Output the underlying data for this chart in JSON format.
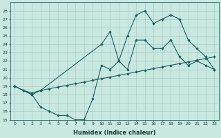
{
  "xlabel": "Humidex (Indice chaleur)",
  "bg_color": "#c8e8e0",
  "grid_color": "#a0c8c0",
  "line_color": "#1a6060",
  "xlim": [
    -0.5,
    23.5
  ],
  "ylim": [
    15,
    29
  ],
  "yticks": [
    15,
    16,
    17,
    18,
    19,
    20,
    21,
    22,
    23,
    24,
    25,
    26,
    27,
    28
  ],
  "xticks": [
    0,
    1,
    2,
    3,
    4,
    5,
    6,
    7,
    8,
    9,
    10,
    11,
    12,
    13,
    14,
    15,
    16,
    17,
    18,
    19,
    20,
    21,
    22,
    23
  ],
  "line1_x": [
    0,
    1,
    2,
    3,
    4,
    5,
    6,
    7,
    8,
    9,
    10,
    11,
    12,
    13,
    14,
    15,
    16,
    17,
    18,
    19,
    20,
    21,
    22,
    23
  ],
  "line1_y": [
    19,
    18.5,
    18,
    16.5,
    16,
    15.5,
    15.5,
    15,
    15,
    17.5,
    21.5,
    21,
    22,
    21,
    24.5,
    24.5,
    23.5,
    23.5,
    24.5,
    22.5,
    21.5,
    22,
    21.5,
    21
  ],
  "line2_x": [
    0,
    1,
    2,
    3,
    4,
    5,
    6,
    7,
    8,
    9,
    10,
    11,
    12,
    13,
    14,
    15,
    16,
    17,
    18,
    19,
    20,
    21,
    22,
    23
  ],
  "line2_y": [
    19,
    18.5,
    18.2,
    18.5,
    18.7,
    18.9,
    19.1,
    19.3,
    19.5,
    19.7,
    19.9,
    20.1,
    20.3,
    20.5,
    20.7,
    20.9,
    21.1,
    21.3,
    21.5,
    21.7,
    21.9,
    22.1,
    22.3,
    22.5
  ],
  "line3_x": [
    0,
    1,
    2,
    3,
    10,
    11,
    12,
    13,
    14,
    15,
    16,
    17,
    18,
    19,
    20,
    21,
    22,
    23
  ],
  "line3_y": [
    19,
    18.5,
    18,
    18.5,
    24,
    25.5,
    22,
    25,
    27.5,
    28,
    26.5,
    27,
    27.5,
    27,
    24.5,
    23.5,
    22.5,
    21
  ],
  "xlabel_fontsize": 6,
  "tick_fontsize": 4.5,
  "linewidth": 0.8,
  "markersize": 2.2
}
